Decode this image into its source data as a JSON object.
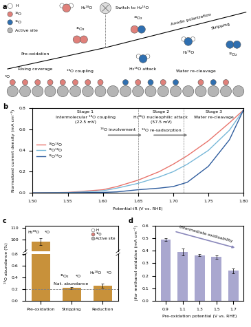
{
  "diagram": {
    "label": "a",
    "texts": {
      "water18": "H₂¹⁸O",
      "switch": "Switch to H₂¹⁶O",
      "anodic": "Anodic polarization",
      "stripping": "Stripping",
      "preox": "Pre-oxidation",
      "rising": "Rising coverage",
      "o36": "³⁶O₂",
      "coupling": "¹⁸O coupling",
      "o34": "³⁴O₂",
      "attack": "H₂¹⁶O attack",
      "water16": "H₂¹⁶O",
      "recleave": "Water re-cleavage",
      "o32": "³²O₂",
      "star": "*O"
    },
    "legend": [
      {
        "name": "H",
        "color": "#ffffff"
      },
      {
        "name": "¹⁸O",
        "color": "#e0807a"
      },
      {
        "name": "¹⁶O",
        "color": "#2f6fb0"
      },
      {
        "name": "Active site",
        "color": "#b5b5b5"
      }
    ]
  },
  "chart_data": [
    {
      "label": "b",
      "type": "line",
      "x_label": "Potential-iR (V vs. RHE)",
      "y_label": "Normalized current density (mA cm⁻²)",
      "x": [
        1.5,
        1.55,
        1.6,
        1.62,
        1.65,
        1.68,
        1.7,
        1.72,
        1.75,
        1.78,
        1.8
      ],
      "series": [
        {
          "name": "¹⁸O¹⁸O",
          "color": "#e8746c",
          "values": [
            0,
            0.005,
            0.03,
            0.06,
            0.12,
            0.2,
            0.27,
            0.35,
            0.49,
            0.66,
            0.78
          ]
        },
        {
          "name": "¹⁶O¹⁸O",
          "color": "#78b8d8",
          "values": [
            0,
            0.003,
            0.02,
            0.045,
            0.09,
            0.15,
            0.2,
            0.27,
            0.4,
            0.59,
            0.78
          ]
        },
        {
          "name": "¹⁶O¹⁶O",
          "color": "#2f5d9e",
          "values": [
            0,
            0.001,
            0.005,
            0.01,
            0.03,
            0.045,
            0.06,
            0.1,
            0.25,
            0.5,
            0.78
          ]
        }
      ],
      "xlim": [
        1.5,
        1.8
      ],
      "xticks": [
        {
          "value": 1.5,
          "label": "1.50"
        },
        {
          "value": 1.55,
          "label": "1.55"
        },
        {
          "value": 1.6,
          "label": "1.60"
        },
        {
          "value": 1.65,
          "label": "1.65"
        },
        {
          "value": 1.7,
          "label": "1.70"
        },
        {
          "value": 1.75,
          "label": "1.75"
        },
        {
          "value": 1.8,
          "label": "1.80"
        }
      ],
      "ylim": [
        0.0,
        0.8
      ],
      "yticks": [
        0.0,
        0.2,
        0.4,
        0.6,
        0.8
      ],
      "legend": "center left",
      "stages": [
        {
          "title": "Stage 1",
          "text": "Intermolecular ¹⁸O coupling",
          "note": "(22.5 mV)"
        },
        {
          "title": "Stage 2",
          "text": "H₂¹⁶O nucleophilic attack",
          "note": "(57.5 mV)"
        },
        {
          "title": "Stage 3",
          "text": "Water re-cleavage"
        }
      ],
      "stage_boundaries": [
        1.65,
        1.715
      ],
      "arrows": [
        "¹⁶O involvement",
        "¹⁶O re-sadsorption"
      ]
    },
    {
      "label": "c",
      "type": "bar",
      "y_label": "¹⁸O abundance (%)",
      "categories": [
        "Pre-oxidation",
        "Stripping",
        "Reduction"
      ],
      "values": [
        98,
        0.22,
        0.26
      ],
      "errors": [
        3,
        0.02,
        0.04
      ],
      "color": "#c8913a",
      "axes": [
        {
          "ylim": [
            90,
            112
          ],
          "yticks": [
            100,
            110
          ]
        },
        {
          "ylim": [
            0.0,
            0.8
          ],
          "yticks": [
            0.0,
            0.2,
            0.4,
            0.6,
            0.8
          ]
        }
      ],
      "reference_line": {
        "value": 0.2,
        "label": "Nat. abundance"
      },
      "bar_notes": [
        [
          "H₂¹⁸O",
          "*O"
        ],
        [
          "³⁶O₂",
          "*O"
        ],
        [
          "H₂¹⁸O",
          "*O"
        ]
      ],
      "legend": "upper right",
      "legend_entries": [
        {
          "name": "H",
          "color": "#ffffff"
        },
        {
          "name": "¹⁸O",
          "color": "#e0807a"
        },
        {
          "name": "Active site",
          "color": "#b5b5b5"
        }
      ]
    },
    {
      "label": "d",
      "type": "bar",
      "x_label": "Pre-oxidation potential (V vs. RHE)",
      "y_label": "j for methanol oxidation (mA cm⁻²)",
      "categories": [
        "0.9",
        "1.1",
        "1.3",
        "1.5",
        "1.7"
      ],
      "values": [
        0.49,
        0.39,
        0.365,
        0.35,
        0.24
      ],
      "errors": [
        0.01,
        0.03,
        0.01,
        0.015,
        0.02
      ],
      "color": "#a9a7cf",
      "ylim": [
        0.0,
        0.6
      ],
      "yticks": [
        0.0,
        0.1,
        0.2,
        0.3,
        0.4,
        0.5,
        0.6
      ],
      "annotation": "Intermediate oxidizability"
    }
  ]
}
